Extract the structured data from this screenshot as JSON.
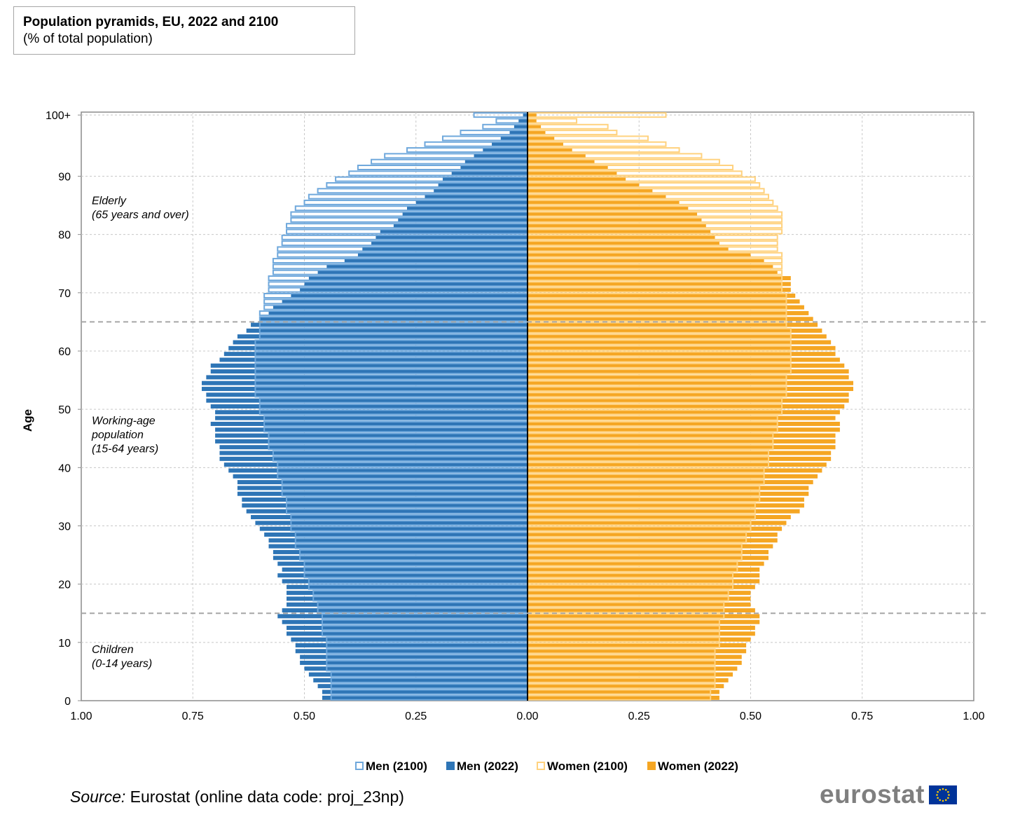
{
  "title": "Population pyramids, EU, 2022 and 2100",
  "subtitle": "(% of total population)",
  "source_label": "Source:",
  "source_text": " Eurostat (online data code: proj_23np)",
  "logo_text": "eurostat",
  "logo_icon": "eu-flag-icon",
  "colors": {
    "men_2022": "#2e75b6",
    "men_2100": "#6fa8dc",
    "women_2022": "#f5a623",
    "women_2100": "#ffd27f",
    "grid": "#c8c8c8",
    "divider": "#a6a6a6"
  },
  "chart_data": {
    "type": "bar",
    "orientation": "horizontal-pyramid",
    "title": "Population pyramids, EU, 2022 and 2100",
    "subtitle": "(% of total population)",
    "ylabel": "Age",
    "xlabel": "",
    "xlim": [
      -1.0,
      1.0
    ],
    "ylim": [
      0,
      100
    ],
    "x_ticks": [
      "1.00",
      "0.75",
      "0.50",
      "0.25",
      "0.00",
      "0.25",
      "0.50",
      "0.75",
      "1.00"
    ],
    "y_ticks": [
      "0",
      "10",
      "20",
      "30",
      "40",
      "50",
      "60",
      "70",
      "80",
      "90",
      "100+"
    ],
    "grid": true,
    "divider_ages": [
      14.5,
      64.5
    ],
    "annotations": [
      {
        "id": "elderly",
        "lines": [
          "Elderly",
          "(65 years and over)"
        ],
        "age": 84
      },
      {
        "id": "working",
        "lines": [
          "Working-age",
          "population",
          "(15-64 years)"
        ],
        "age": 45
      },
      {
        "id": "children",
        "lines": [
          "Children",
          "(0-14 years)"
        ],
        "age": 7
      }
    ],
    "legend": [
      "Men (2100)",
      "Men (2022)",
      "Women (2100)",
      "Women (2022)"
    ],
    "legend_position": "bottom",
    "ages": [
      0,
      1,
      2,
      3,
      4,
      5,
      6,
      7,
      8,
      9,
      10,
      11,
      12,
      13,
      14,
      15,
      16,
      17,
      18,
      19,
      20,
      21,
      22,
      23,
      24,
      25,
      26,
      27,
      28,
      29,
      30,
      31,
      32,
      33,
      34,
      35,
      36,
      37,
      38,
      39,
      40,
      41,
      42,
      43,
      44,
      45,
      46,
      47,
      48,
      49,
      50,
      51,
      52,
      53,
      54,
      55,
      56,
      57,
      58,
      59,
      60,
      61,
      62,
      63,
      64,
      65,
      66,
      67,
      68,
      69,
      70,
      71,
      72,
      73,
      74,
      75,
      76,
      77,
      78,
      79,
      80,
      81,
      82,
      83,
      84,
      85,
      86,
      87,
      88,
      89,
      90,
      91,
      92,
      93,
      94,
      95,
      96,
      97,
      98,
      99,
      100
    ],
    "series": [
      {
        "name": "Men (2022)",
        "values": [
          0.46,
          0.46,
          0.47,
          0.48,
          0.49,
          0.5,
          0.51,
          0.51,
          0.52,
          0.52,
          0.53,
          0.54,
          0.54,
          0.55,
          0.56,
          0.55,
          0.54,
          0.54,
          0.54,
          0.54,
          0.55,
          0.56,
          0.55,
          0.56,
          0.57,
          0.57,
          0.58,
          0.58,
          0.59,
          0.6,
          0.61,
          0.62,
          0.63,
          0.64,
          0.64,
          0.65,
          0.65,
          0.65,
          0.66,
          0.67,
          0.68,
          0.69,
          0.69,
          0.69,
          0.7,
          0.7,
          0.7,
          0.71,
          0.7,
          0.7,
          0.71,
          0.72,
          0.72,
          0.73,
          0.73,
          0.72,
          0.71,
          0.71,
          0.69,
          0.68,
          0.67,
          0.66,
          0.65,
          0.63,
          0.62,
          0.6,
          0.58,
          0.57,
          0.55,
          0.53,
          0.51,
          0.5,
          0.49,
          0.47,
          0.45,
          0.41,
          0.38,
          0.37,
          0.35,
          0.34,
          0.33,
          0.3,
          0.29,
          0.28,
          0.27,
          0.25,
          0.23,
          0.21,
          0.2,
          0.19,
          0.17,
          0.15,
          0.14,
          0.12,
          0.1,
          0.08,
          0.06,
          0.04,
          0.03,
          0.02,
          0.01
        ]
      },
      {
        "name": "Men (2100)",
        "values": [
          0.44,
          0.44,
          0.44,
          0.44,
          0.44,
          0.45,
          0.45,
          0.45,
          0.45,
          0.45,
          0.45,
          0.46,
          0.46,
          0.46,
          0.46,
          0.47,
          0.47,
          0.48,
          0.48,
          0.49,
          0.49,
          0.5,
          0.5,
          0.5,
          0.51,
          0.51,
          0.52,
          0.52,
          0.52,
          0.53,
          0.53,
          0.53,
          0.54,
          0.54,
          0.54,
          0.55,
          0.55,
          0.55,
          0.56,
          0.56,
          0.56,
          0.57,
          0.57,
          0.58,
          0.58,
          0.58,
          0.59,
          0.59,
          0.59,
          0.6,
          0.6,
          0.6,
          0.61,
          0.61,
          0.61,
          0.61,
          0.61,
          0.61,
          0.61,
          0.61,
          0.61,
          0.61,
          0.6,
          0.6,
          0.6,
          0.6,
          0.6,
          0.59,
          0.59,
          0.59,
          0.58,
          0.58,
          0.58,
          0.57,
          0.57,
          0.57,
          0.56,
          0.56,
          0.55,
          0.55,
          0.54,
          0.54,
          0.53,
          0.53,
          0.52,
          0.5,
          0.49,
          0.47,
          0.45,
          0.43,
          0.4,
          0.38,
          0.35,
          0.32,
          0.27,
          0.23,
          0.19,
          0.15,
          0.1,
          0.07,
          0.12
        ]
      },
      {
        "name": "Women (2022)",
        "values": [
          0.43,
          0.43,
          0.44,
          0.45,
          0.46,
          0.47,
          0.48,
          0.48,
          0.49,
          0.49,
          0.5,
          0.51,
          0.51,
          0.52,
          0.52,
          0.51,
          0.5,
          0.5,
          0.5,
          0.51,
          0.52,
          0.52,
          0.52,
          0.53,
          0.54,
          0.54,
          0.55,
          0.56,
          0.56,
          0.57,
          0.58,
          0.59,
          0.61,
          0.62,
          0.62,
          0.63,
          0.63,
          0.64,
          0.65,
          0.66,
          0.67,
          0.68,
          0.68,
          0.69,
          0.69,
          0.69,
          0.7,
          0.7,
          0.69,
          0.7,
          0.71,
          0.72,
          0.72,
          0.73,
          0.73,
          0.72,
          0.72,
          0.71,
          0.7,
          0.69,
          0.69,
          0.68,
          0.67,
          0.66,
          0.65,
          0.64,
          0.63,
          0.62,
          0.61,
          0.6,
          0.59,
          0.59,
          0.59,
          0.56,
          0.55,
          0.53,
          0.5,
          0.45,
          0.43,
          0.42,
          0.41,
          0.4,
          0.39,
          0.38,
          0.36,
          0.34,
          0.31,
          0.28,
          0.25,
          0.22,
          0.2,
          0.18,
          0.15,
          0.13,
          0.1,
          0.08,
          0.06,
          0.04,
          0.03,
          0.02,
          0.02
        ]
      },
      {
        "name": "Women (2100)",
        "values": [
          0.41,
          0.41,
          0.42,
          0.42,
          0.42,
          0.42,
          0.42,
          0.42,
          0.42,
          0.43,
          0.43,
          0.43,
          0.43,
          0.43,
          0.44,
          0.44,
          0.44,
          0.45,
          0.45,
          0.46,
          0.46,
          0.46,
          0.47,
          0.47,
          0.48,
          0.48,
          0.48,
          0.49,
          0.49,
          0.5,
          0.5,
          0.51,
          0.51,
          0.51,
          0.52,
          0.52,
          0.52,
          0.53,
          0.53,
          0.53,
          0.54,
          0.54,
          0.54,
          0.55,
          0.55,
          0.55,
          0.56,
          0.56,
          0.56,
          0.57,
          0.57,
          0.57,
          0.58,
          0.58,
          0.58,
          0.58,
          0.59,
          0.59,
          0.59,
          0.59,
          0.59,
          0.59,
          0.59,
          0.59,
          0.58,
          0.58,
          0.58,
          0.58,
          0.58,
          0.58,
          0.57,
          0.57,
          0.57,
          0.57,
          0.57,
          0.57,
          0.57,
          0.56,
          0.56,
          0.56,
          0.57,
          0.57,
          0.57,
          0.57,
          0.56,
          0.55,
          0.54,
          0.53,
          0.52,
          0.51,
          0.48,
          0.46,
          0.43,
          0.39,
          0.34,
          0.31,
          0.27,
          0.2,
          0.18,
          0.11,
          0.31
        ]
      }
    ]
  }
}
